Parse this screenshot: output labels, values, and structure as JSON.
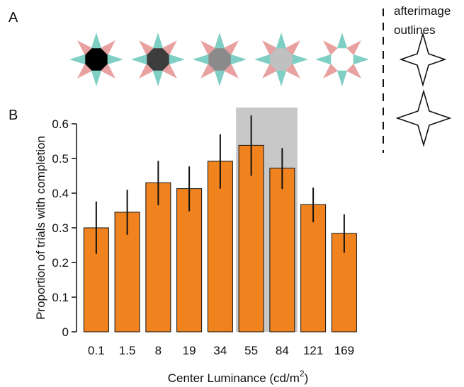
{
  "panels": {
    "a": "A",
    "b": "B"
  },
  "legend": {
    "line1": "afterimage",
    "line2": "outlines"
  },
  "colors": {
    "bar": "#F0831E",
    "highlight": "#C8C8C8",
    "star_pink": "#E8A0A0",
    "star_teal": "#7FCFC4",
    "star_centers": [
      "#000000",
      "#3D3D3D",
      "#8A8A8A",
      "#C0C0C0",
      "#FFFFFF"
    ]
  },
  "chart_data": {
    "type": "bar",
    "title": "",
    "xlabel": "Center Luminance (cd/m",
    "xlabel_superscript": "2",
    "xlabel_close": ")",
    "ylabel": "Proportion of trials with completion",
    "categories": [
      "0.1",
      "1.5",
      "8",
      "19",
      "34",
      "55",
      "84",
      "121",
      "169"
    ],
    "values": [
      0.3,
      0.345,
      0.43,
      0.413,
      0.492,
      0.538,
      0.472,
      0.367,
      0.284
    ],
    "error_low": [
      0.225,
      0.28,
      0.365,
      0.348,
      0.413,
      0.45,
      0.412,
      0.316,
      0.228
    ],
    "error_high": [
      0.376,
      0.41,
      0.493,
      0.477,
      0.57,
      0.624,
      0.53,
      0.416,
      0.339
    ],
    "ylim": [
      0,
      0.6
    ],
    "yticks": [
      "0",
      "0.1",
      "0.2",
      "0.3",
      "0.4",
      "0.5",
      "0.6"
    ],
    "ytick_values": [
      0,
      0.1,
      0.2,
      0.3,
      0.4,
      0.5,
      0.6
    ],
    "highlight_categories": [
      "55",
      "84"
    ],
    "grid": false,
    "legend": "none"
  }
}
